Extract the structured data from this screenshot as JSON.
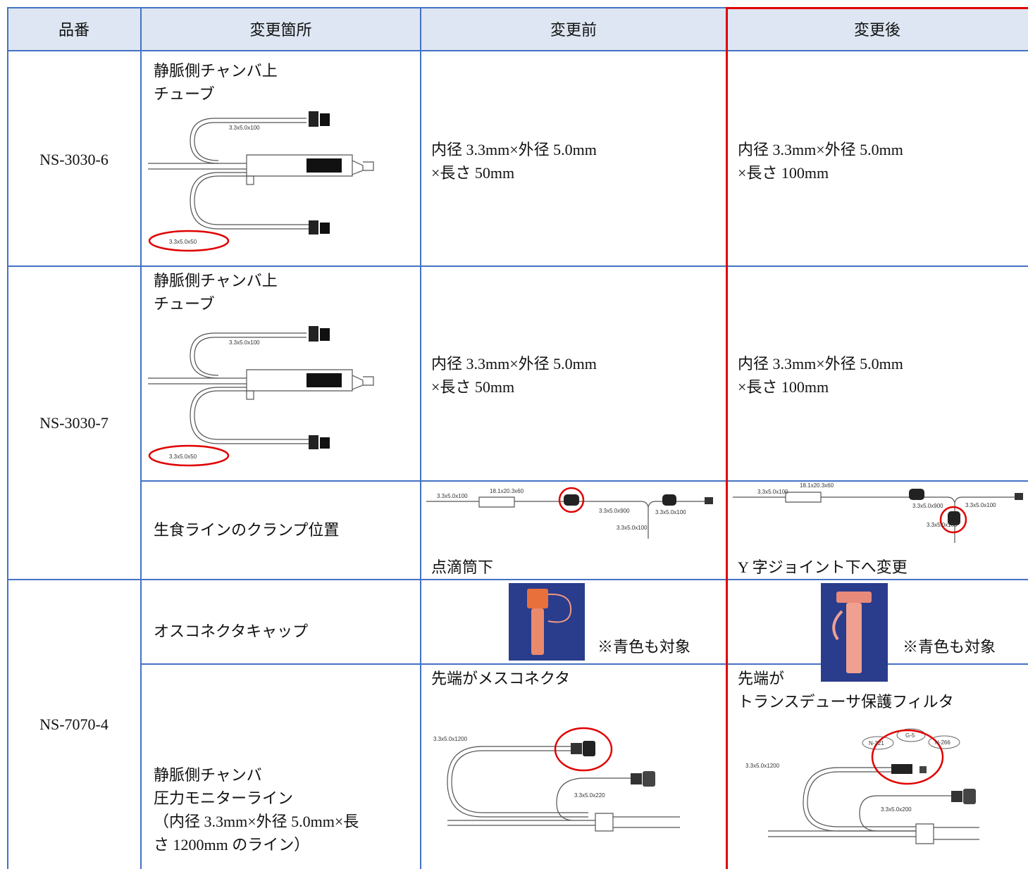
{
  "table": {
    "header": [
      "品番",
      "変更箇所",
      "変更前",
      "変更後"
    ],
    "rows": [
      {
        "part": "NS-3030-6",
        "location": "静脈側チャンバ上\nチューブ",
        "drawing_labels": [
          "3.3x5.0x100",
          "3.3x5.0x50"
        ],
        "before": "内径 3.3mm×外径 5.0mm\n×長さ 50mm",
        "after": "内径 3.3mm×外径 5.0mm\n×長さ 100mm"
      },
      {
        "part": "NS-3030-7",
        "location": "静脈側チャンバ上\nチューブ",
        "drawing_labels": [
          "3.3x5.0x100",
          "3.3x5.0x50"
        ],
        "before": "内径 3.3mm×外径 5.0mm\n×長さ 50mm",
        "after": "内径 3.3mm×外径 5.0mm\n×長さ 100mm"
      },
      {
        "location": "生食ラインのクランプ位置",
        "before_labels": [
          "3.3x5.0x100",
          "18.1x20.3x60",
          "3.3x5.0x900",
          "3.3x5.0x100",
          "3.3x5.0x100"
        ],
        "after_labels": [
          "3.3x5.0x100",
          "18.1x20.3x60",
          "3.3x5.0x900",
          "3.3x5.0x100",
          "3.3x5.0x100"
        ],
        "before": "点滴筒下",
        "after": "Y 字ジョイント下へ変更"
      },
      {
        "part": "NS-7070-4",
        "location": "オスコネクタキャップ",
        "before": "※青色も対象",
        "after": "※青色も対象"
      },
      {
        "location": "静脈側チャンバ\n圧力モニターライン\n（内径 3.3mm×外径 5.0mm×長\nさ 1200mm のライン）",
        "before": "先端がメスコネクタ",
        "before_labels": [
          "3.3x5.0x1200",
          "3.3x5.0x220"
        ],
        "after": "先端が\nトランスデューサ保護フィルタ",
        "after_labels": [
          "3.3x5.0x1200",
          "3.3x5.0x200",
          "N-321",
          "G-5",
          "N-266"
        ]
      }
    ]
  }
}
